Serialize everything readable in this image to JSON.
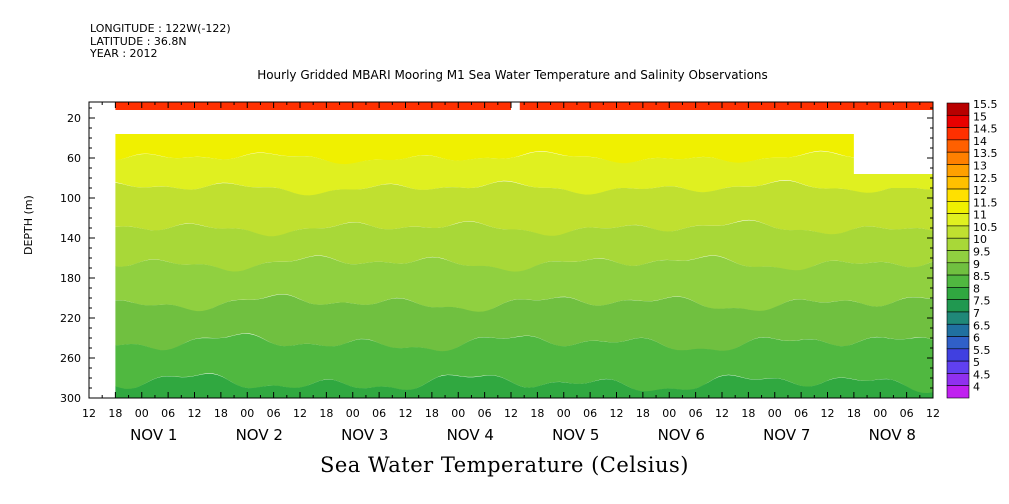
{
  "header": {
    "longitude": "LONGITUDE : 122W(-122)",
    "latitude": "LATITUDE : 36.8N",
    "year": "YEAR : 2012"
  },
  "chart_data": {
    "type": "heatmap",
    "title": "Hourly Gridded MBARI Mooring M1 Sea Water Temperature and Salinity Observations",
    "xlabel": "Sea Water Temperature (Celsius)",
    "ylabel": "DEPTH (m)",
    "y_ticks": [
      20,
      60,
      100,
      140,
      180,
      220,
      260,
      300
    ],
    "ylim": [
      300,
      4
    ],
    "x_hour_ticks": [
      "12",
      "18",
      "00",
      "06",
      "12",
      "18",
      "00",
      "06",
      "12",
      "18",
      "00",
      "06",
      "12",
      "18",
      "00",
      "06",
      "12",
      "18",
      "00",
      "06",
      "12",
      "18",
      "00",
      "06",
      "12",
      "18",
      "00",
      "06",
      "12",
      "18",
      "00",
      "06",
      "12"
    ],
    "x_day_labels": [
      "NOV 1",
      "NOV 2",
      "NOV 3",
      "NOV 4",
      "NOV 5",
      "NOV 6",
      "NOV 7",
      "NOV 8"
    ],
    "x_range": [
      "2012-10-31 12:00",
      "2012-11-08 12:00"
    ],
    "colorbar_levels": [
      "15.5",
      "15",
      "14.5",
      "14",
      "13.5",
      "13",
      "12.5",
      "12",
      "11.5",
      "11",
      "10.5",
      "10",
      "9.5",
      "9",
      "8.5",
      "8",
      "7.5",
      "7",
      "6.5",
      "6",
      "5.5",
      "5",
      "4.5",
      "4"
    ],
    "colorbar_colors": [
      "#b80000",
      "#e80000",
      "#ff3000",
      "#ff6000",
      "#ff8000",
      "#ffa000",
      "#ffc000",
      "#ffe000",
      "#f0f000",
      "#e0f020",
      "#c0e030",
      "#a8d838",
      "#90d040",
      "#70c040",
      "#50b840",
      "#30a840",
      "#209850",
      "#208878",
      "#2070a0",
      "#3060c8",
      "#4040e0",
      "#6040f0",
      "#9030f0",
      "#c020f0"
    ],
    "data_start": "2012-10-31 18:00",
    "data_end": "2012-11-08 12:00",
    "depth_layers": [
      {
        "depth_top": 4,
        "depth_bottom": 12,
        "temperature_c": 14.5
      },
      {
        "depth_top": 36,
        "depth_bottom": 60,
        "temperature_c": 11.5
      },
      {
        "depth_top": 60,
        "depth_bottom": 90,
        "temperature_c": 11.0
      },
      {
        "depth_top": 90,
        "depth_bottom": 130,
        "temperature_c": 10.5
      },
      {
        "depth_top": 130,
        "depth_bottom": 165,
        "temperature_c": 10.0
      },
      {
        "depth_top": 165,
        "depth_bottom": 205,
        "temperature_c": 9.5
      },
      {
        "depth_top": 205,
        "depth_bottom": 245,
        "temperature_c": 9.0
      },
      {
        "depth_top": 245,
        "depth_bottom": 285,
        "temperature_c": 8.5
      },
      {
        "depth_top": 285,
        "depth_bottom": 300,
        "temperature_c": 8.0
      }
    ]
  }
}
